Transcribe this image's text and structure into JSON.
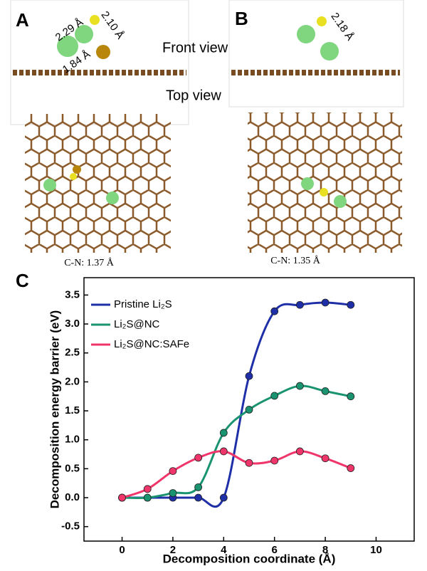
{
  "figure": {
    "panel_a": {
      "label": "A",
      "front_view": "Front view",
      "top_view": "Top view",
      "bonds": [
        "2.29 Å",
        "2.10 Å",
        "1.84 Å"
      ],
      "cn": "C-N: 1.37 Å"
    },
    "panel_b": {
      "label": "B",
      "bonds": [
        "2.18 Å"
      ],
      "cn": "C-N: 1.35 Å"
    },
    "panel_c": {
      "label": "C"
    }
  },
  "chart_data": {
    "type": "line",
    "x_label": "Decomposition coordinate (Å)",
    "y_label": "Decomposition energy barrier (eV)",
    "x": [
      0,
      1,
      2,
      3,
      4,
      5,
      6,
      7,
      8,
      9
    ],
    "series": [
      {
        "name": "Pristine Li₂S",
        "color": "#1f2fa8",
        "values": [
          0,
          0,
          0,
          0,
          0,
          2.1,
          3.22,
          3.33,
          3.37,
          3.33
        ]
      },
      {
        "name": "Li₂S@NC",
        "color": "#1a9470",
        "values": [
          0,
          0,
          0.08,
          0.18,
          1.12,
          1.52,
          1.76,
          1.93,
          1.84,
          1.75
        ]
      },
      {
        "name": "Li₂S@NC:SAFe",
        "color": "#f0356b",
        "values": [
          0,
          0.15,
          0.46,
          0.69,
          0.8,
          0.6,
          0.64,
          0.8,
          0.68,
          0.51
        ]
      }
    ],
    "xlim": [
      -1.5,
      11.5
    ],
    "xticks": [
      0,
      2,
      4,
      6,
      8,
      10
    ],
    "ylim": [
      -0.75,
      3.8
    ],
    "yticks": [
      -0.5,
      {
        "value": 0,
        "label": "0.0"
      },
      0.5,
      {
        "value": 1,
        "label": "1.0"
      },
      1.5,
      {
        "value": 2,
        "label": "2.0"
      },
      2.5,
      {
        "value": 3,
        "label": "3.0"
      },
      3.5
    ],
    "legend": "upper left"
  }
}
